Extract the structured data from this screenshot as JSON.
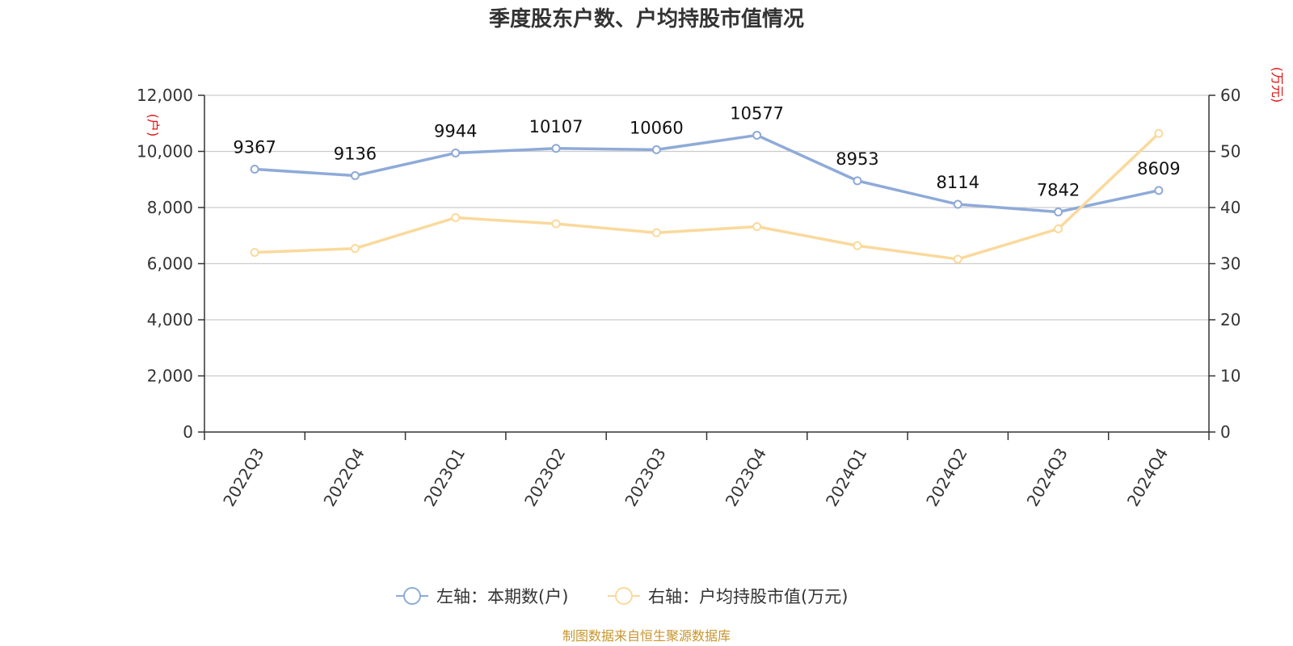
{
  "chart_data": {
    "type": "line",
    "title": "季度股东户数、户均持股市值情况",
    "categories": [
      "2022Q3",
      "2022Q4",
      "2023Q1",
      "2023Q2",
      "2023Q3",
      "2023Q4",
      "2024Q1",
      "2024Q2",
      "2024Q3",
      "2024Q4"
    ],
    "series": [
      {
        "name": "左轴：本期数(户)",
        "axis": "left",
        "color": "#8eaad8",
        "values": [
          9367,
          9136,
          9944,
          10107,
          10060,
          10577,
          8953,
          8114,
          7842,
          8609
        ],
        "data_labels": [
          "9367",
          "9136",
          "9944",
          "10107",
          "10060",
          "10577",
          "8953",
          "8114",
          "7842",
          "8609"
        ]
      },
      {
        "name": "右轴：户均持股市值(万元)",
        "axis": "right",
        "color": "#fad99c",
        "values": [
          32.0,
          32.7,
          38.2,
          37.1,
          35.5,
          36.6,
          33.2,
          30.8,
          36.2,
          53.2
        ]
      }
    ],
    "y_left": {
      "unit": "(户)",
      "ylim": [
        0,
        12000
      ],
      "ticks": [
        "0",
        "2,000",
        "4,000",
        "6,000",
        "8,000",
        "10,000",
        "12,000"
      ]
    },
    "y_right": {
      "unit": "(万元)",
      "ylim": [
        0,
        60
      ],
      "ticks": [
        "0",
        "10",
        "20",
        "30",
        "40",
        "50",
        "60"
      ]
    },
    "grid": true,
    "legend_position": "bottom-center",
    "source": "制图数据来自恒生聚源数据库"
  }
}
